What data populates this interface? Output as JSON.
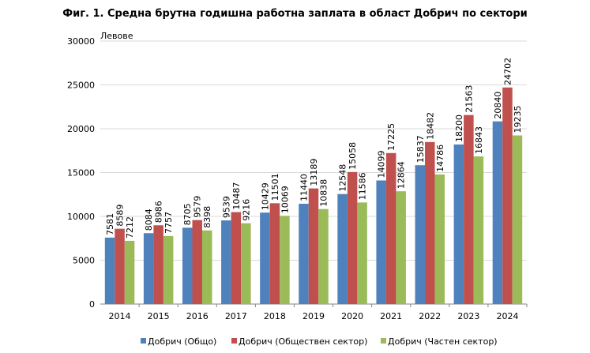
{
  "chart_data": {
    "type": "bar",
    "title": "Фиг. 1. Средна брутна годишна работна заплата в област Добрич по сектори",
    "unit_label": "Левове",
    "xlabel": "",
    "ylabel": "",
    "ylim": [
      0,
      30000
    ],
    "yticks": [
      0,
      5000,
      10000,
      15000,
      20000,
      25000,
      30000
    ],
    "grid": true,
    "legend_position": "bottom",
    "categories": [
      "2014",
      "2015",
      "2016",
      "2017",
      "2018",
      "2019",
      "2020",
      "2021",
      "2022",
      "2023",
      "2024"
    ],
    "series": [
      {
        "name": "Добрич (Общо)",
        "color": "#4f81bd",
        "values": [
          7581,
          8084,
          8705,
          9539,
          10429,
          11440,
          12548,
          14099,
          15837,
          18200,
          20840
        ]
      },
      {
        "name": "Добрич (Обществен сектор)",
        "color": "#c0504d",
        "values": [
          8589,
          8986,
          9579,
          10487,
          11501,
          13189,
          15058,
          17225,
          18482,
          21563,
          24702
        ]
      },
      {
        "name": "Добрич (Частен сектор)",
        "color": "#9bbb59",
        "values": [
          7212,
          7757,
          8398,
          9216,
          10069,
          10838,
          11586,
          12864,
          14786,
          16843,
          19235
        ]
      }
    ]
  }
}
